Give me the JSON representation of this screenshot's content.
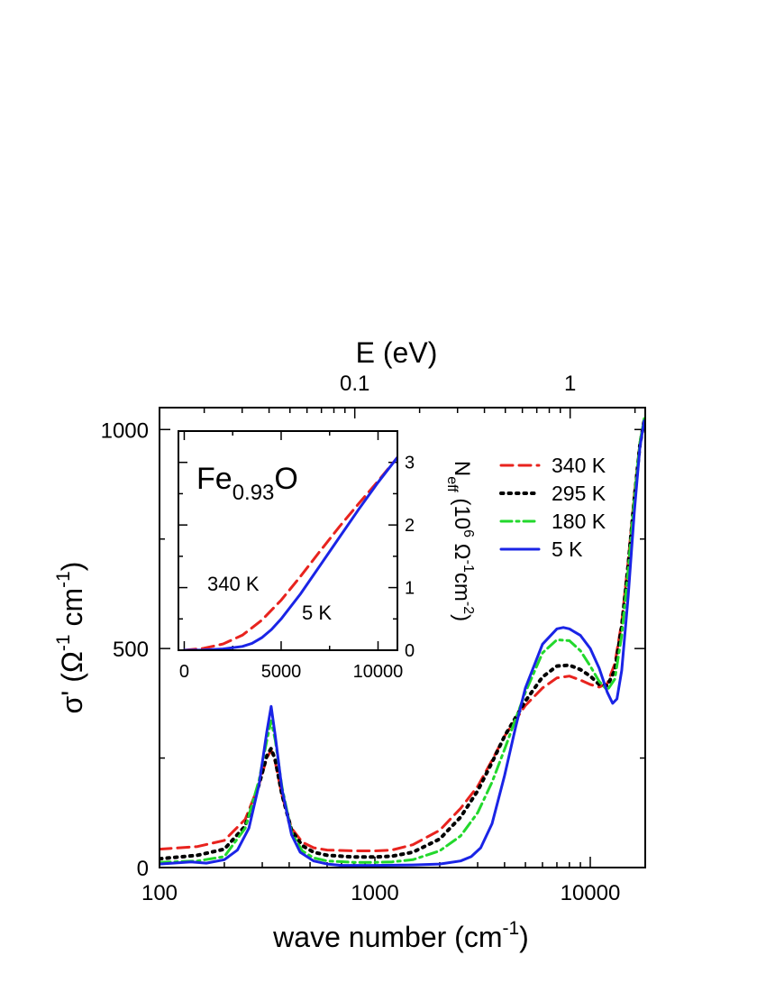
{
  "chart_data": [
    {
      "type": "line",
      "xlabel": "wave number (cm",
      "xlabel_sup": "-1",
      "xlabel_end": ")",
      "top_axis_label": "E (eV)",
      "top_ticks": [
        "0.1",
        "1"
      ],
      "ylabel": "σ' (Ω",
      "ylabel_sup1": "-1",
      "ylabel_mid": " cm",
      "ylabel_sup2": "-1",
      "ylabel_end": ")",
      "x_scale": "log",
      "xlim": [
        100,
        18000
      ],
      "ylim": [
        0,
        1050
      ],
      "x_ticks": [
        "100",
        "1000",
        "10000"
      ],
      "y_ticks": [
        "0",
        "500",
        "1000"
      ],
      "legend_position": "top-right",
      "series": [
        {
          "name": "340 K",
          "color": "#e8231e",
          "style": "dashed",
          "points": [
            [
              100,
              42
            ],
            [
              150,
              48
            ],
            [
              200,
              62
            ],
            [
              250,
              110
            ],
            [
              290,
              190
            ],
            [
              315,
              250
            ],
            [
              330,
              268
            ],
            [
              345,
              240
            ],
            [
              370,
              165
            ],
            [
              410,
              90
            ],
            [
              460,
              58
            ],
            [
              520,
              45
            ],
            [
              600,
              40
            ],
            [
              800,
              38
            ],
            [
              1000,
              38
            ],
            [
              1200,
              40
            ],
            [
              1500,
              52
            ],
            [
              2000,
              85
            ],
            [
              2500,
              135
            ],
            [
              3000,
              185
            ],
            [
              3500,
              245
            ],
            [
              4000,
              300
            ],
            [
              5000,
              370
            ],
            [
              6000,
              410
            ],
            [
              7000,
              433
            ],
            [
              8000,
              437
            ],
            [
              9000,
              428
            ],
            [
              10000,
              418
            ],
            [
              11000,
              412
            ],
            [
              12000,
              420
            ],
            [
              13000,
              465
            ],
            [
              14000,
              560
            ],
            [
              15000,
              700
            ],
            [
              16000,
              850
            ],
            [
              17000,
              970
            ],
            [
              17800,
              1020
            ]
          ]
        },
        {
          "name": "295 K",
          "color": "#000000",
          "style": "dotted",
          "points": [
            [
              100,
              20
            ],
            [
              150,
              28
            ],
            [
              200,
              42
            ],
            [
              250,
              95
            ],
            [
              290,
              190
            ],
            [
              315,
              255
            ],
            [
              330,
              272
            ],
            [
              345,
              245
            ],
            [
              370,
              168
            ],
            [
              410,
              85
            ],
            [
              460,
              50
            ],
            [
              520,
              35
            ],
            [
              600,
              28
            ],
            [
              800,
              24
            ],
            [
              1000,
              24
            ],
            [
              1200,
              26
            ],
            [
              1500,
              35
            ],
            [
              2000,
              65
            ],
            [
              2500,
              115
            ],
            [
              3000,
              175
            ],
            [
              3500,
              240
            ],
            [
              4000,
              300
            ],
            [
              5000,
              380
            ],
            [
              6000,
              435
            ],
            [
              7000,
              460
            ],
            [
              8000,
              462
            ],
            [
              9000,
              452
            ],
            [
              10000,
              437
            ],
            [
              11000,
              418
            ],
            [
              12000,
              415
            ],
            [
              13000,
              450
            ],
            [
              14000,
              550
            ],
            [
              15000,
              690
            ],
            [
              16000,
              840
            ],
            [
              17000,
              965
            ],
            [
              17800,
              1020
            ]
          ]
        },
        {
          "name": "180 K",
          "color": "#22d82c",
          "style": "dashdot",
          "points": [
            [
              100,
              12
            ],
            [
              150,
              15
            ],
            [
              200,
              25
            ],
            [
              250,
              90
            ],
            [
              290,
              200
            ],
            [
              315,
              290
            ],
            [
              330,
              335
            ],
            [
              345,
              290
            ],
            [
              370,
              185
            ],
            [
              410,
              80
            ],
            [
              460,
              38
            ],
            [
              520,
              22
            ],
            [
              600,
              15
            ],
            [
              800,
              12
            ],
            [
              1000,
              12
            ],
            [
              1200,
              13
            ],
            [
              1500,
              18
            ],
            [
              2000,
              38
            ],
            [
              2500,
              72
            ],
            [
              3000,
              125
            ],
            [
              3500,
              195
            ],
            [
              4000,
              270
            ],
            [
              5000,
              400
            ],
            [
              6000,
              490
            ],
            [
              7000,
              520
            ],
            [
              8000,
              518
            ],
            [
              9000,
              495
            ],
            [
              10000,
              460
            ],
            [
              11000,
              425
            ],
            [
              12000,
              405
            ],
            [
              13000,
              430
            ],
            [
              14000,
              530
            ],
            [
              15000,
              680
            ],
            [
              16000,
              840
            ],
            [
              17000,
              970
            ],
            [
              17800,
              1025
            ]
          ]
        },
        {
          "name": "5 K",
          "color": "#1a24e6",
          "style": "solid",
          "points": [
            [
              100,
              8
            ],
            [
              140,
              13
            ],
            [
              165,
              10
            ],
            [
              200,
              18
            ],
            [
              230,
              40
            ],
            [
              260,
              90
            ],
            [
              290,
              190
            ],
            [
              315,
              310
            ],
            [
              330,
              368
            ],
            [
              345,
              300
            ],
            [
              370,
              180
            ],
            [
              410,
              75
            ],
            [
              450,
              35
            ],
            [
              520,
              15
            ],
            [
              600,
              8
            ],
            [
              700,
              5
            ],
            [
              1000,
              5
            ],
            [
              1500,
              6
            ],
            [
              2000,
              8
            ],
            [
              2500,
              15
            ],
            [
              2800,
              25
            ],
            [
              3100,
              45
            ],
            [
              3500,
              100
            ],
            [
              4000,
              210
            ],
            [
              4500,
              320
            ],
            [
              5000,
              410
            ],
            [
              6000,
              510
            ],
            [
              7000,
              545
            ],
            [
              7500,
              548
            ],
            [
              8000,
              545
            ],
            [
              9000,
              530
            ],
            [
              10000,
              500
            ],
            [
              11000,
              455
            ],
            [
              12000,
              400
            ],
            [
              12700,
              375
            ],
            [
              13300,
              385
            ],
            [
              14000,
              450
            ],
            [
              15000,
              620
            ],
            [
              16000,
              810
            ],
            [
              17000,
              960
            ],
            [
              17800,
              1020
            ]
          ]
        }
      ]
    },
    {
      "type": "line",
      "inset": true,
      "annotation_main": "Fe",
      "annotation_sub": "0.93",
      "annotation_end": "O",
      "ylabel_right": "N",
      "ylabel_right_sub": "eff",
      "ylabel_right_mid": " (10",
      "ylabel_right_sup1": "6",
      "ylabel_right_mid2": " Ω",
      "ylabel_right_sup2": "-1",
      "ylabel_right_mid3": "cm",
      "ylabel_right_sup3": "-2",
      "ylabel_right_end": ")",
      "xlim": [
        -300,
        11000
      ],
      "ylim": [
        0,
        3.5
      ],
      "x_ticks": [
        "0",
        "5000",
        "10000"
      ],
      "y_ticks": [
        "0",
        "1",
        "2",
        "3"
      ],
      "series": [
        {
          "name": "340 K",
          "color": "#e8231e",
          "style": "dashed",
          "points": [
            [
              0,
              0
            ],
            [
              1000,
              0.03
            ],
            [
              2000,
              0.1
            ],
            [
              3000,
              0.24
            ],
            [
              4000,
              0.48
            ],
            [
              5000,
              0.8
            ],
            [
              6000,
              1.18
            ],
            [
              7000,
              1.58
            ],
            [
              8000,
              1.97
            ],
            [
              9000,
              2.34
            ],
            [
              10000,
              2.7
            ],
            [
              11000,
              3.08
            ]
          ]
        },
        {
          "name": "5 K",
          "color": "#1a24e6",
          "style": "solid",
          "points": [
            [
              0,
              0
            ],
            [
              1000,
              0.005
            ],
            [
              2000,
              0.02
            ],
            [
              3000,
              0.06
            ],
            [
              3500,
              0.11
            ],
            [
              4000,
              0.2
            ],
            [
              4500,
              0.33
            ],
            [
              5000,
              0.5
            ],
            [
              6000,
              0.9
            ],
            [
              7000,
              1.35
            ],
            [
              8000,
              1.8
            ],
            [
              9000,
              2.25
            ],
            [
              10000,
              2.68
            ],
            [
              11000,
              3.08
            ]
          ]
        }
      ]
    }
  ]
}
